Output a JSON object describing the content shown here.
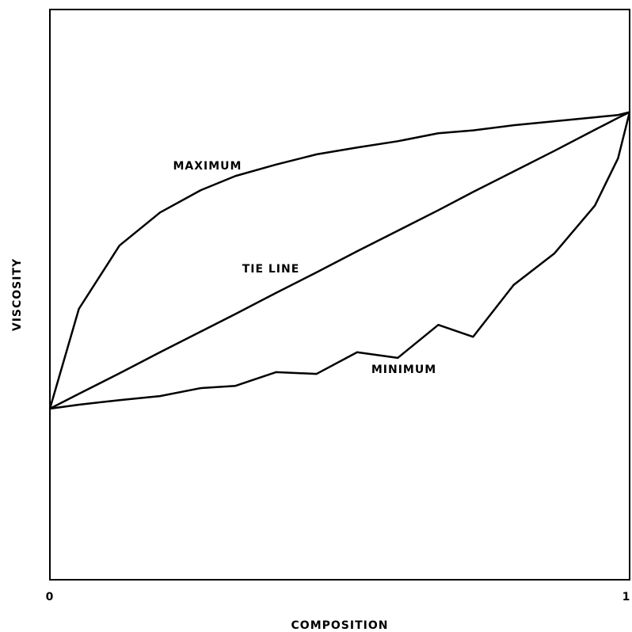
{
  "chart_data": {
    "type": "line",
    "xlabel": "COMPOSITION",
    "ylabel": "VISCOSITY",
    "x": [
      0,
      0.05,
      0.12,
      0.19,
      0.26,
      0.32,
      0.39,
      0.46,
      0.53,
      0.6,
      0.67,
      0.73,
      0.8,
      0.87,
      0.94,
      0.98,
      1
    ],
    "series": [
      {
        "name": "MAXIMUM",
        "color": "#000000",
        "values": [
          0.3,
          0.475,
          0.586,
          0.644,
          0.683,
          0.708,
          0.728,
          0.746,
          0.758,
          0.769,
          0.783,
          0.788,
          0.797,
          0.804,
          0.811,
          0.815,
          0.82
        ]
      },
      {
        "name": "TIE LINE",
        "color": "#000000",
        "values": [
          0.3,
          0.326,
          0.362,
          0.399,
          0.435,
          0.466,
          0.503,
          0.539,
          0.576,
          0.612,
          0.648,
          0.68,
          0.716,
          0.752,
          0.789,
          0.81,
          0.82
        ]
      },
      {
        "name": "MINIMUM",
        "color": "#000000",
        "values": [
          0.3,
          0.307,
          0.315,
          0.322,
          0.336,
          0.34,
          0.364,
          0.361,
          0.399,
          0.389,
          0.447,
          0.426,
          0.517,
          0.572,
          0.656,
          0.739,
          0.82
        ]
      }
    ],
    "xlim": [
      0,
      1
    ],
    "xticks": [
      0,
      1
    ],
    "ylim": [
      0,
      1
    ],
    "legend": false
  }
}
